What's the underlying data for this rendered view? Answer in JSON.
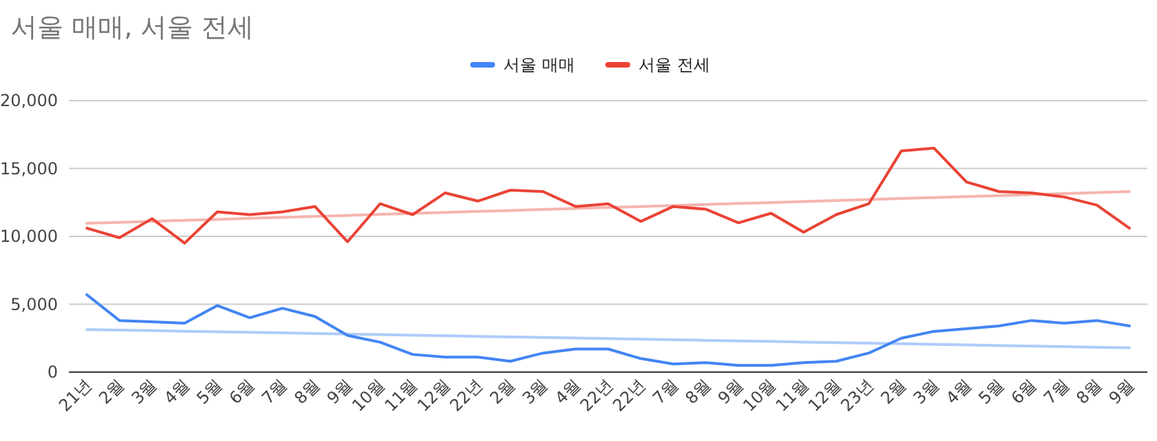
{
  "chart_data": {
    "type": "line",
    "title": "서울 매매, 서울 전세",
    "categories": [
      "21년",
      "2월",
      "3월",
      "4월",
      "5월",
      "6월",
      "7월",
      "8월",
      "9월",
      "10월",
      "11월",
      "12월",
      "22년",
      "2월",
      "3월",
      "4월",
      "22년",
      "22년",
      "7월",
      "8월",
      "9월",
      "10월",
      "11월",
      "12월",
      "23년",
      "2월",
      "3월",
      "4월",
      "5월",
      "6월",
      "7월",
      "8월",
      "9월"
    ],
    "series": [
      {
        "name": "서울 매매",
        "color": "#4285f4",
        "values": [
          5700,
          3800,
          3700,
          3600,
          4900,
          4000,
          4700,
          4100,
          2700,
          2200,
          1300,
          1100,
          1100,
          800,
          1400,
          1700,
          1700,
          1000,
          600,
          700,
          500,
          500,
          700,
          800,
          1400,
          2500,
          3000,
          3200,
          3400,
          3800,
          3600,
          3800,
          3400
        ]
      },
      {
        "name": "서울 전세",
        "color": "#ea4335",
        "values": [
          10600,
          9900,
          11300,
          9500,
          11800,
          11600,
          11800,
          12200,
          9600,
          12400,
          11600,
          13200,
          12600,
          13400,
          13300,
          12200,
          12400,
          11100,
          12200,
          12000,
          11000,
          11700,
          10300,
          11600,
          12400,
          16300,
          16500,
          14000,
          13300,
          13200,
          12900,
          12300,
          10600
        ]
      },
      {
        "type": "line",
        "color": "#aecbfa",
        "values": [
          3140,
          3100,
          3060,
          3010,
          2970,
          2930,
          2890,
          2840,
          2800,
          2760,
          2720,
          2680,
          2630,
          2590,
          2550,
          2510,
          2470,
          2420,
          2380,
          2340,
          2300,
          2260,
          2210,
          2170,
          2130,
          2090,
          2040,
          2000,
          1960,
          1920,
          1880,
          1830,
          1790
        ]
      },
      {
        "type": "line",
        "color": "#f5b5ae",
        "values": [
          10960,
          11030,
          11110,
          11180,
          11250,
          11330,
          11400,
          11470,
          11540,
          11620,
          11690,
          11760,
          11840,
          11910,
          11980,
          12060,
          12130,
          12200,
          12270,
          12350,
          12420,
          12490,
          12570,
          12640,
          12710,
          12790,
          12860,
          12930,
          13000,
          13080,
          13150,
          13220,
          13300
        ]
      }
    ],
    "ylim": [
      0,
      20000
    ],
    "yticks": [
      {
        "value": 0,
        "label": "0"
      },
      {
        "value": 5000,
        "label": "5,000"
      },
      {
        "value": 10000,
        "label": "10,000"
      },
      {
        "value": 15000,
        "label": "15,000"
      },
      {
        "value": 20000,
        "label": "20,000"
      }
    ],
    "grid": "y",
    "legend": "top"
  }
}
